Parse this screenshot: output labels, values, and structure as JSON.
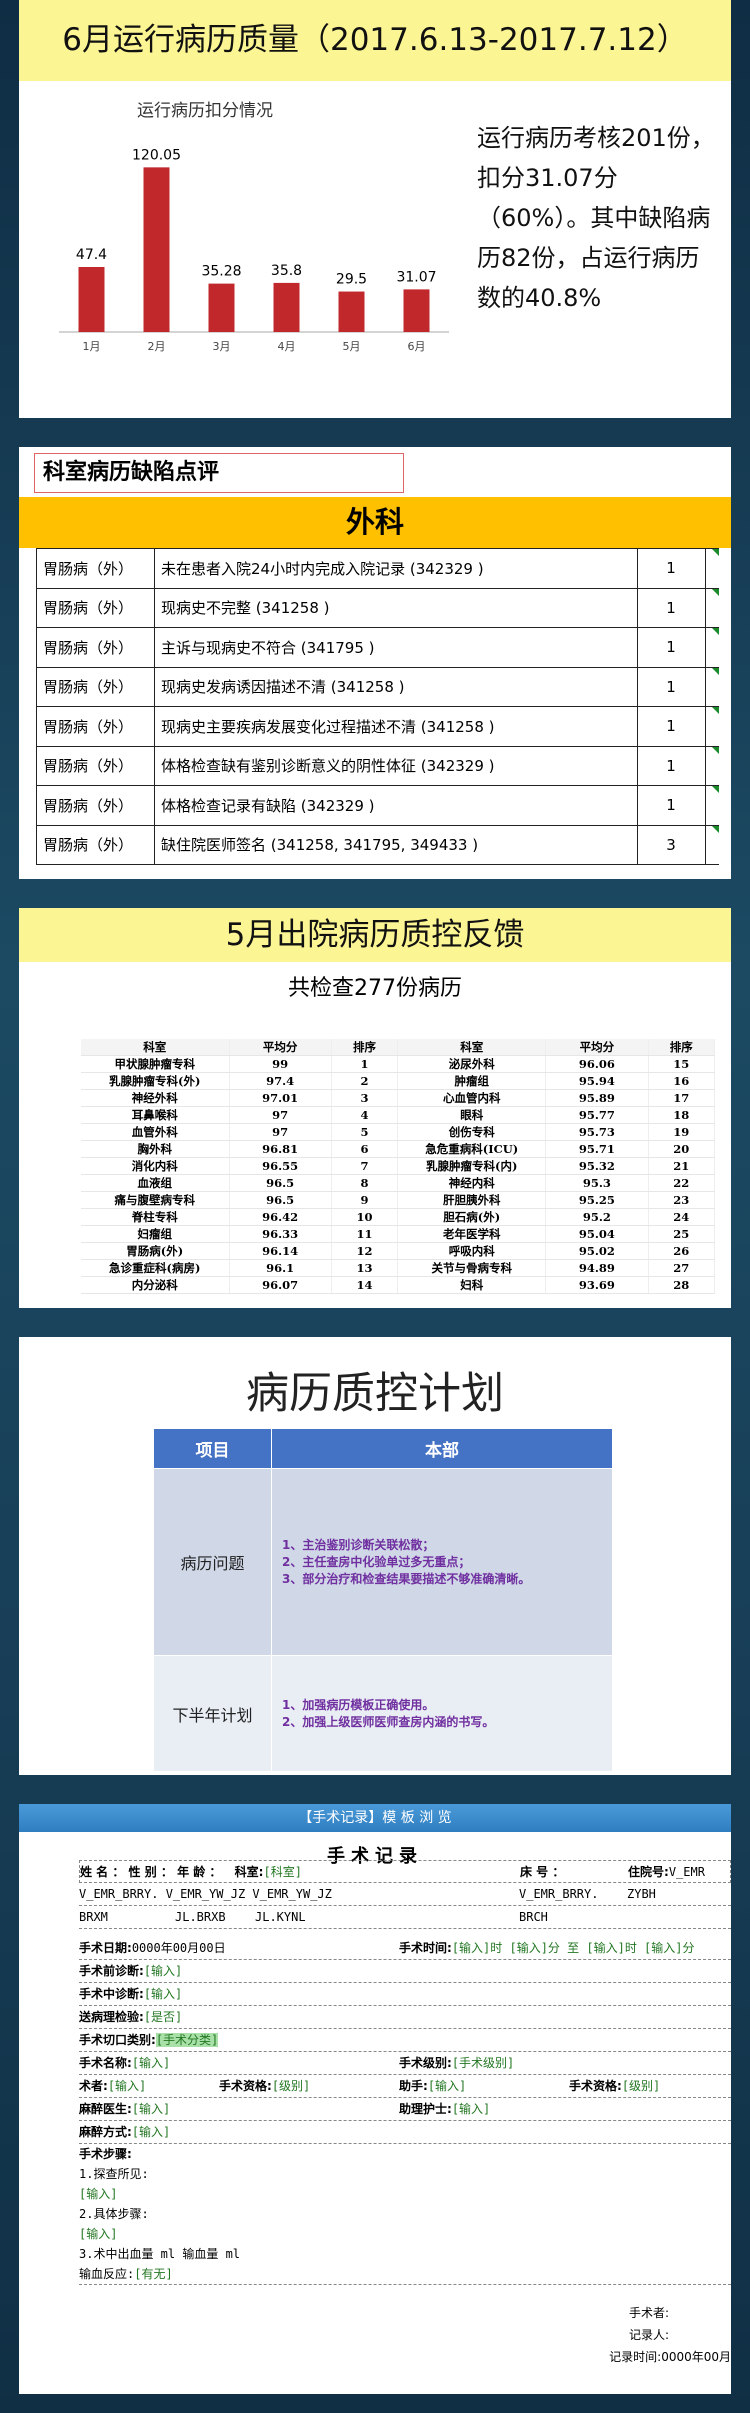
{
  "slide1": {
    "banner": "6月运行病历质量（2017.6.13-2017.7.12）",
    "summary": "运行病历考核201份，扣分31.07分（60%）。其中缺陷病历82份，占运行病历数的40.8%",
    "chart_data": {
      "type": "bar",
      "title": "运行病历扣分情况",
      "categories": [
        "1月",
        "2月",
        "3月",
        "4月",
        "5月",
        "6月"
      ],
      "values": [
        47.4,
        120.05,
        35.28,
        35.8,
        29.5,
        31.07
      ],
      "ylim": [
        0,
        140
      ],
      "grid": false,
      "color": "#c0282b"
    }
  },
  "slide2": {
    "section": "科室病历缺陷点评",
    "dept": "外科",
    "rows": [
      {
        "dept": "胃肠病（外）",
        "issue": "未在患者入院24小时内完成入院记录 (342329 )",
        "count": "1"
      },
      {
        "dept": "胃肠病（外）",
        "issue": "现病史不完整 (341258 )",
        "count": "1"
      },
      {
        "dept": "胃肠病（外）",
        "issue": "主诉与现病史不符合 (341795 )",
        "count": "1"
      },
      {
        "dept": "胃肠病（外）",
        "issue": "现病史发病诱因描述不清 (341258 )",
        "count": "1"
      },
      {
        "dept": "胃肠病（外）",
        "issue": "现病史主要疾病发展变化过程描述不清 (341258 )",
        "count": "1"
      },
      {
        "dept": "胃肠病（外）",
        "issue": "体格检查缺有鉴别诊断意义的阴性体征 (342329 )",
        "count": "1"
      },
      {
        "dept": "胃肠病（外）",
        "issue": "体格检查记录有缺陷 (342329 )",
        "count": "1"
      },
      {
        "dept": "胃肠病（外）",
        "issue": "缺住院医师签名 (341258, 341795, 349433 )",
        "count": "3"
      }
    ]
  },
  "slide3": {
    "banner": "5月出院病历质控反馈",
    "subtitle": "共检查277份病历",
    "headers": [
      "科室",
      "平均分",
      "排序",
      "科室",
      "平均分",
      "排序"
    ],
    "rows": [
      [
        "甲状腺肿瘤专科",
        "99",
        "1",
        "泌尿外科",
        "96.06",
        "15"
      ],
      [
        "乳腺肿瘤专科(外)",
        "97.4",
        "2",
        "肿瘤组",
        "95.94",
        "16"
      ],
      [
        "神经外科",
        "97.01",
        "3",
        "心血管内科",
        "95.89",
        "17"
      ],
      [
        "耳鼻喉科",
        "97",
        "4",
        "眼科",
        "95.77",
        "18"
      ],
      [
        "血管外科",
        "97",
        "5",
        "创伤专科",
        "95.73",
        "19"
      ],
      [
        "胸外科",
        "96.81",
        "6",
        "急危重病科(ICU)",
        "95.71",
        "20"
      ],
      [
        "消化内科",
        "96.55",
        "7",
        "乳腺肿瘤专科(内)",
        "95.32",
        "21"
      ],
      [
        "血液组",
        "96.5",
        "8",
        "神经内科",
        "95.3",
        "22"
      ],
      [
        "痛与腹壁病专科",
        "96.5",
        "9",
        "肝胆胰外科",
        "95.25",
        "23"
      ],
      [
        "脊柱专科",
        "96.42",
        "10",
        "胆石病(外)",
        "95.2",
        "24"
      ],
      [
        "妇瘤组",
        "96.33",
        "11",
        "老年医学科",
        "95.04",
        "25"
      ],
      [
        "胃肠病(外)",
        "96.14",
        "12",
        "呼吸内科",
        "95.02",
        "26"
      ],
      [
        "急诊重症科(病房)",
        "96.1",
        "13",
        "关节与骨病专科",
        "94.89",
        "27"
      ],
      [
        "内分泌科",
        "96.07",
        "14",
        "妇科",
        "93.69",
        "28"
      ]
    ]
  },
  "slide4": {
    "title": "病历质控计划",
    "col1": "项目",
    "col2": "本部",
    "r1_key": "病历问题",
    "r1_items": [
      "1、主治鉴别诊断关联松散；",
      "2、主任查房中化验单过多无重点；",
      "3、部分治疗和检查结果要描述不够准确清晰。"
    ],
    "r2_key": "下半年计划",
    "r2_items": [
      "1、加强病历模板正确使用。",
      "2、加强上级医师医师查房内涵的书写。"
    ]
  },
  "slide5": {
    "header": "【手术记录】模 板 浏 览",
    "title": "手术记录",
    "hdr_line1": "姓 名 ： 性 别 ： 年 龄 ：",
    "dept_label": "科室:",
    "dept_val": "[科室]",
    "bed_label": "床 号 ：",
    "adm_label": "住院号:",
    "adm_val": "V_EMR",
    "codes1": "V_EMR_BRRY. V_EMR_YW_JZ V_EMR_YW_JZ",
    "codes1b": "V_EMR_BRRY.",
    "codes1c": "ZYBH",
    "codes2": "BRXM",
    "codes2b": "JL.BRXB",
    "codes2c": "JL.KYNL",
    "codes2d": "BRCH",
    "date_label": "手术日期:",
    "date_val": "0000年00月00日",
    "time_label": "手术时间:",
    "time_val": "[输入]时 [输入]分 至 [输入]时 [输入]分",
    "pre_label": "手术前诊断:",
    "mid_label": "手术中诊断:",
    "path_label": "送病理检验:",
    "path_val": "[是否]",
    "cut_label": "手术切口类别:",
    "cut_val": "[手术分类]",
    "name_label": "手术名称:",
    "level_label": "手术级别:",
    "level_val": "[手术级别]",
    "surgeon_label": "术者:",
    "qual_label": "手术资格:",
    "qual_val": "[级别]",
    "assist_label": "助手:",
    "anes_label": "麻醉医生:",
    "nurse_label": "助理护士:",
    "method_label": "麻醉方式:",
    "steps_label": "手术步骤:",
    "step1": "1.探查所见:",
    "step2": "2.具体步骤:",
    "step3": "3.术中出血量 ml      输血量 ml",
    "reaction_label": "输血反应:",
    "reaction_val": "[有无]",
    "input": "[输入]",
    "sign1": "手术者:",
    "sign2": "记录人:",
    "sign3": "记录时间:",
    "sign3_val": "0000年00月"
  }
}
